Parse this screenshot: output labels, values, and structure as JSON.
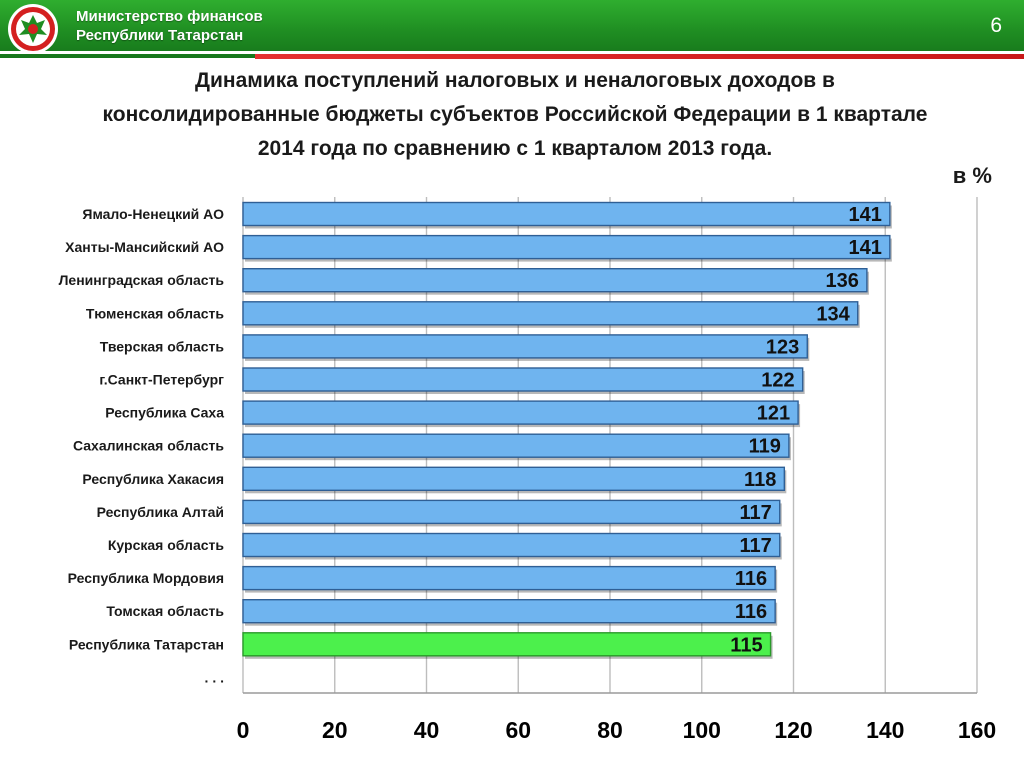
{
  "header": {
    "ministry_line1": "Министерство финансов",
    "ministry_line2": "Республики Татарстан",
    "page_number": "6"
  },
  "title": {
    "line1": "Динамика поступлений налоговых и неналоговых доходов в",
    "line2": "консолидированные бюджеты субъектов Российской Федерации в 1 квартале",
    "line3": "2014 года по сравнению с 1 кварталом 2013 года."
  },
  "unit_label": "в %",
  "colors": {
    "header_green": "#1f8d22",
    "bar_blue": "#6fb4ef",
    "bar_green": "#4cf04c",
    "accent_red": "#d42020"
  },
  "chart_data": {
    "type": "bar",
    "orientation": "horizontal",
    "categories": [
      "Ямало-Ненецкий АО",
      "Ханты-Мансийский АО",
      "Ленинградская область",
      "Тюменская область",
      "Тверская область",
      "г.Санкт-Петербург",
      "Республика Саха",
      "Сахалинская область",
      "Республика Хакасия",
      "Республика Алтай",
      "Курская область",
      "Республика Мордовия",
      "Томская область",
      "Республика Татарстан",
      ". . ."
    ],
    "values": [
      141,
      141,
      136,
      134,
      123,
      122,
      121,
      119,
      118,
      117,
      117,
      116,
      116,
      115,
      null
    ],
    "highlight_index": 13,
    "xlim": [
      0,
      160
    ],
    "xticks": [
      0,
      20,
      40,
      60,
      80,
      100,
      120,
      140,
      160
    ],
    "grid": true,
    "xlabel": "",
    "ylabel": ""
  }
}
